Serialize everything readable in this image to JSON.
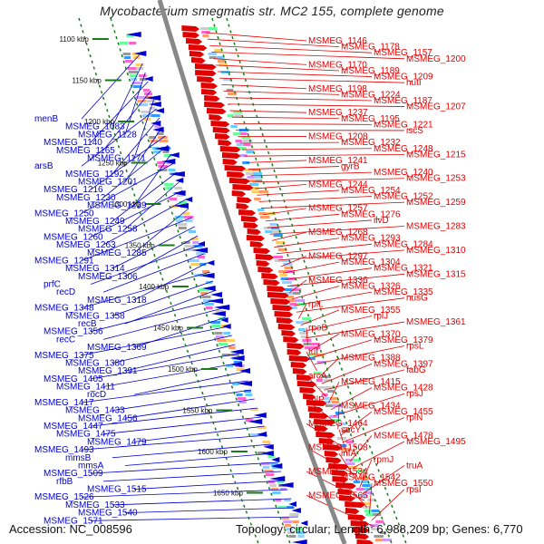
{
  "title": "Mycobacterium smegmatis str. MC2 155, complete genome",
  "footer": {
    "accession": "Accession: NC_008596",
    "topology": "Topology: circular; Length: 6,988,209 bp; Genes: 6,770"
  },
  "colors": {
    "forward": "#e00000",
    "reverse": "#0000cc",
    "backbone": "#888888",
    "tick": "#1a7a1a"
  },
  "kbp_ticks": [
    "1100 kbp",
    "1150 kbp",
    "1200 kbp",
    "1250 kbp",
    "1300 kbp",
    "1350 kbp",
    "1400 kbp",
    "1450 kbp",
    "1500 kbp",
    "1550 kbp",
    "1600 kbp",
    "1650 kbp"
  ],
  "left_labels": [
    "menB",
    "MSMEG_1083",
    "MSMEG_1128",
    "MSMEG_1140",
    "MSMEG_1165",
    "MSMEG_1171",
    "arsB",
    "MSMEG_1192",
    "MSMEG_1201",
    "MSMEG_1216",
    "MSMEG_1230",
    "MSMEG_1239",
    "MSMEG_1250",
    "MSMEG_1249",
    "MSMEG_1258",
    "MSMEG_1260",
    "MSMEG_1263",
    "MSMEG_1285",
    "MSMEG_1291",
    "MSMEG_1314",
    "MSMEG_1306",
    "prfC",
    "recD",
    "MSMEG_1318",
    "MSMEG_1348",
    "MSMEG_1358",
    "recB",
    "MSMEG_1356",
    "recC",
    "MSMEG_1369",
    "MSMEG_1375",
    "MSMEG_1380",
    "MSMEG_1391",
    "MSMEG_1405",
    "MSMEG_1411",
    "rocD",
    "MSMEG_1417",
    "MSMEG_1433",
    "MSMEG_1456",
    "MSMEG_1447",
    "MSMEG_1475",
    "MSMEG_1479",
    "MSMEG_1493",
    "mmsB",
    "mmsA",
    "MSMEG_1509",
    "rfbB",
    "MSMEG_1515",
    "MSMEG_1526",
    "MSMEG_1533",
    "MSMEG_1540",
    "MSMEG_1571"
  ],
  "right_labels": [
    "MSMEG_1146",
    "MSMEG_1178",
    "MSMEG_1157",
    "MSMEG_1200",
    "MSMEG_1170",
    "MSMEG_1189",
    "MSMEG_1209",
    "hutI",
    "MSMEG_1198",
    "MSMEG_1224",
    "MSMEG_1187",
    "MSMEG_1207",
    "MSMEG_1237",
    "MSMEG_1195",
    "MSMEG_1221",
    "iscS",
    "MSMEG_1208",
    "MSMEG_1232",
    "MSMEG_1248",
    "MSMEG_1215",
    "MSMEG_1241",
    "gyrB",
    "MSMEG_1240",
    "MSMEG_1253",
    "MSMEG_1244",
    "MSMEG_1254",
    "MSMEG_1252",
    "MSMEG_1259",
    "MSMEG_1257",
    "MSMEG_1276",
    "ilvD",
    "MSMEG_1283",
    "MSMEG_1268",
    "MSMEG_1293",
    "MSMEG_1284",
    "MSMEG_1310",
    "MSMEG_1297",
    "MSMEG_1304",
    "MSMEG_1321",
    "MSMEG_1315",
    "MSMEG_1336",
    "MSMEG_1326",
    "MSMEG_1335",
    "nusG",
    "rplL",
    "MSMEG_1355",
    "rplJ",
    "MSMEG_1361",
    "rpoB",
    "MSMEG_1370",
    "MSMEG_1379",
    "rpsL",
    "tuf",
    "MSMEG_1388",
    "MSMEG_1397",
    "fabG",
    "arcA",
    "MSMEG_1415",
    "MSMEG_1428",
    "rpsJ",
    "rplP",
    "MSMEG_1434",
    "MSMEG_1455",
    "rplN",
    "MSMEG_1464",
    "secY",
    "MSMEG_1478",
    "MSMEG_1495",
    "MSMEG_1508",
    "infA",
    "rpmJ",
    "truA",
    "MSMEG_1534",
    "MSMEG_1542",
    "MSMEG_1550",
    "rpsI",
    "MSMEG_1565"
  ]
}
